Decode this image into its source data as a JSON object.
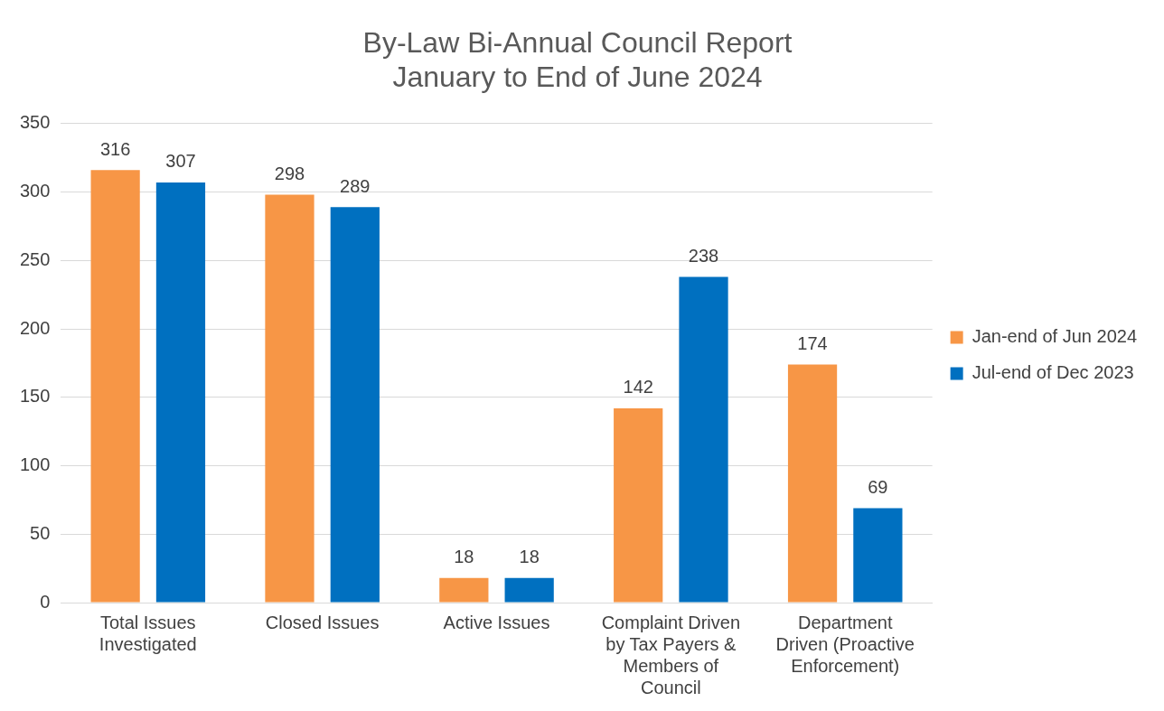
{
  "chart_data": {
    "type": "bar",
    "title": "By-Law Bi-Annual Council Report\nJanuary to End of June 2024",
    "categories": [
      "Total Issues Investigated",
      "Closed Issues",
      "Active Issues",
      "Complaint Driven by Tax Payers & Members of Council",
      "Department Driven (Proactive Enforcement)"
    ],
    "series": [
      {
        "name": "Jan-end of Jun 2024",
        "color": "#f79646",
        "values": [
          316,
          298,
          18,
          142,
          174
        ]
      },
      {
        "name": "Jul-end of Dec 2023",
        "color": "#0070c0",
        "values": [
          307,
          289,
          18,
          238,
          69
        ]
      }
    ],
    "ylim": [
      0,
      350
    ],
    "yticks": [
      0,
      50,
      100,
      150,
      200,
      250,
      300,
      350
    ],
    "grid": "y",
    "legend": "right",
    "data_labels": true
  }
}
